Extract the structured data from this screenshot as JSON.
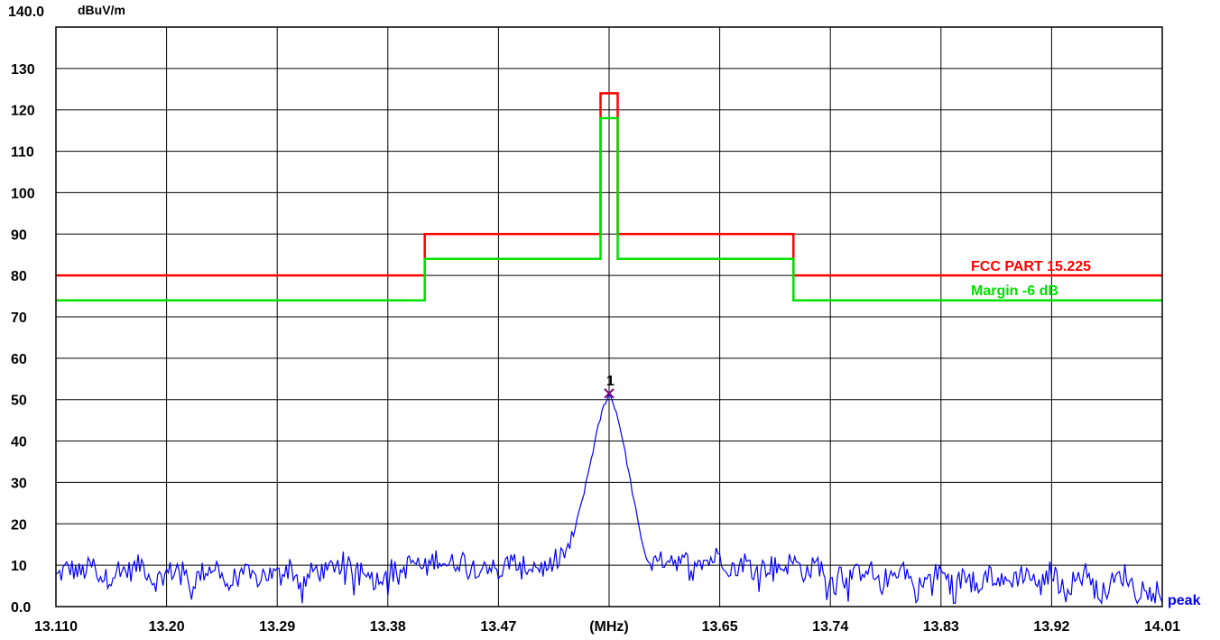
{
  "chart_data": {
    "type": "line",
    "ylabel_unit": "dBuV/m",
    "ytop_label": "140.0",
    "ylim": [
      0,
      140
    ],
    "yticks": [
      {
        "value": 130,
        "label": "130"
      },
      {
        "value": 120,
        "label": "120"
      },
      {
        "value": 110,
        "label": "110"
      },
      {
        "value": 100,
        "label": "100"
      },
      {
        "value": 90,
        "label": "90"
      },
      {
        "value": 80,
        "label": "80"
      },
      {
        "value": 70,
        "label": "70"
      },
      {
        "value": 60,
        "label": "60"
      },
      {
        "value": 50,
        "label": "50"
      },
      {
        "value": 40,
        "label": "40"
      },
      {
        "value": 30,
        "label": "30"
      },
      {
        "value": 20,
        "label": "20"
      },
      {
        "value": 10,
        "label": "10"
      },
      {
        "value": 0,
        "label": "0.0"
      }
    ],
    "xlim": [
      13.11,
      14.01
    ],
    "xticks": [
      {
        "value": 13.11,
        "label": "13.110"
      },
      {
        "value": 13.2,
        "label": "13.20"
      },
      {
        "value": 13.29,
        "label": "13.29"
      },
      {
        "value": 13.38,
        "label": "13.38"
      },
      {
        "value": 13.47,
        "label": "13.47"
      },
      {
        "value": 13.56,
        "label": "(MHz)"
      },
      {
        "value": 13.65,
        "label": "13.65"
      },
      {
        "value": 13.74,
        "label": "13.74"
      },
      {
        "value": 13.83,
        "label": "13.83"
      },
      {
        "value": 13.92,
        "label": "13.92"
      },
      {
        "value": 14.01,
        "label": "14.01"
      }
    ],
    "grid": true,
    "series": [
      {
        "name": "FCC PART 15.225",
        "color": "#ff0000",
        "step": [
          [
            13.11,
            80
          ],
          [
            13.41,
            80
          ],
          [
            13.41,
            90
          ],
          [
            13.553,
            90
          ],
          [
            13.553,
            124
          ],
          [
            13.567,
            124
          ],
          [
            13.567,
            90
          ],
          [
            13.71,
            90
          ],
          [
            13.71,
            80
          ],
          [
            14.01,
            80
          ]
        ]
      },
      {
        "name": "Margin -6 dB",
        "color": "#00e000",
        "step": [
          [
            13.11,
            74
          ],
          [
            13.41,
            74
          ],
          [
            13.41,
            84
          ],
          [
            13.553,
            84
          ],
          [
            13.553,
            118
          ],
          [
            13.567,
            118
          ],
          [
            13.567,
            84
          ],
          [
            13.71,
            84
          ],
          [
            13.71,
            74
          ],
          [
            14.01,
            74
          ]
        ]
      },
      {
        "name": "peak",
        "color": "#0000ff",
        "anchors": [
          [
            13.11,
            7.0
          ],
          [
            13.12,
            9.5
          ],
          [
            13.13,
            8.0
          ],
          [
            13.14,
            10.0
          ],
          [
            13.15,
            6.5
          ],
          [
            13.16,
            9.0
          ],
          [
            13.17,
            8.5
          ],
          [
            13.18,
            10.5
          ],
          [
            13.19,
            6.0
          ],
          [
            13.2,
            8.0
          ],
          [
            13.21,
            9.5
          ],
          [
            13.22,
            5.5
          ],
          [
            13.23,
            8.5
          ],
          [
            13.24,
            10.0
          ],
          [
            13.25,
            4.5
          ],
          [
            13.26,
            9.0
          ],
          [
            13.27,
            6.5
          ],
          [
            13.28,
            8.0
          ],
          [
            13.29,
            7.5
          ],
          [
            13.3,
            10.0
          ],
          [
            13.31,
            5.0
          ],
          [
            13.32,
            9.0
          ],
          [
            13.33,
            8.0
          ],
          [
            13.34,
            11.5
          ],
          [
            13.35,
            9.0
          ],
          [
            13.36,
            10.5
          ],
          [
            13.37,
            6.0
          ],
          [
            13.38,
            9.5
          ],
          [
            13.39,
            8.0
          ],
          [
            13.4,
            11.0
          ],
          [
            13.41,
            9.0
          ],
          [
            13.42,
            12.0
          ],
          [
            13.43,
            10.0
          ],
          [
            13.44,
            11.5
          ],
          [
            13.45,
            9.5
          ],
          [
            13.46,
            10.5
          ],
          [
            13.47,
            8.0
          ],
          [
            13.48,
            11.0
          ],
          [
            13.49,
            9.5
          ],
          [
            13.5,
            10.0
          ],
          [
            13.51,
            9.0
          ],
          [
            13.52,
            12.5
          ],
          [
            13.525,
            13.0
          ],
          [
            13.53,
            16.0
          ],
          [
            13.535,
            22.0
          ],
          [
            13.54,
            28.0
          ],
          [
            13.545,
            35.0
          ],
          [
            13.55,
            42.0
          ],
          [
            13.555,
            48.0
          ],
          [
            13.56,
            51.5
          ],
          [
            13.565,
            48.0
          ],
          [
            13.57,
            42.0
          ],
          [
            13.575,
            34.0
          ],
          [
            13.58,
            26.0
          ],
          [
            13.585,
            18.0
          ],
          [
            13.59,
            12.0
          ],
          [
            13.595,
            9.0
          ],
          [
            13.6,
            11.0
          ],
          [
            13.61,
            12.0
          ],
          [
            13.62,
            10.5
          ],
          [
            13.63,
            12.0
          ],
          [
            13.64,
            11.0
          ],
          [
            13.65,
            12.5
          ],
          [
            13.66,
            9.0
          ],
          [
            13.67,
            11.0
          ],
          [
            13.68,
            8.5
          ],
          [
            13.69,
            10.0
          ],
          [
            13.7,
            9.5
          ],
          [
            13.71,
            11.0
          ],
          [
            13.72,
            8.0
          ],
          [
            13.73,
            10.5
          ],
          [
            13.74,
            6.0
          ],
          [
            13.75,
            9.0
          ],
          [
            13.76,
            7.5
          ],
          [
            13.77,
            10.0
          ],
          [
            13.78,
            5.5
          ],
          [
            13.79,
            8.0
          ],
          [
            13.8,
            9.5
          ],
          [
            13.81,
            4.0
          ],
          [
            13.82,
            7.0
          ],
          [
            13.83,
            8.5
          ],
          [
            13.84,
            5.0
          ],
          [
            13.85,
            7.5
          ],
          [
            13.86,
            6.0
          ],
          [
            13.87,
            8.0
          ],
          [
            13.88,
            5.5
          ],
          [
            13.89,
            7.0
          ],
          [
            13.9,
            8.5
          ],
          [
            13.91,
            4.5
          ],
          [
            13.92,
            9.0
          ],
          [
            13.93,
            3.5
          ],
          [
            13.94,
            7.0
          ],
          [
            13.95,
            8.5
          ],
          [
            13.96,
            2.5
          ],
          [
            13.97,
            6.0
          ],
          [
            13.98,
            8.0
          ],
          [
            13.99,
            3.0
          ],
          [
            14.0,
            7.5
          ],
          [
            14.01,
            1.5
          ]
        ]
      }
    ],
    "marker": {
      "label": "1",
      "x": 13.56,
      "y": 51.5,
      "color": "#800080"
    }
  }
}
